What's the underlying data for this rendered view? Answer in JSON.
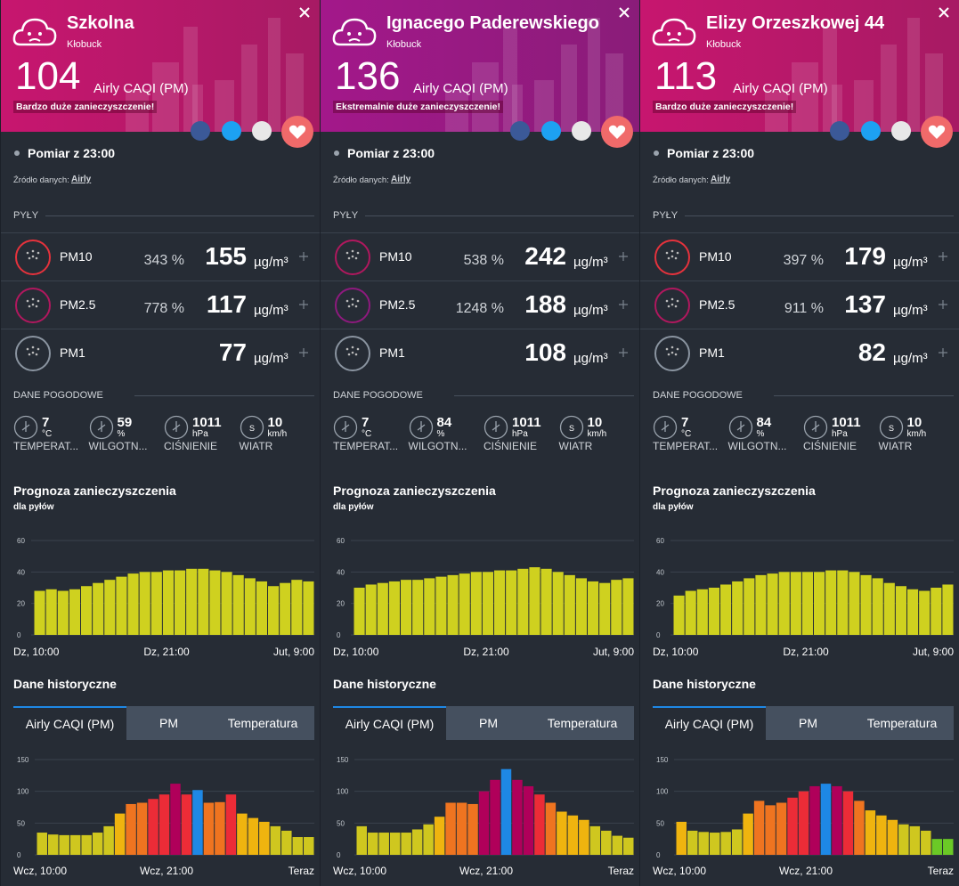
{
  "panels": [
    {
      "title": "Szkolna",
      "city": "Kłobuck",
      "header_color": "#c7166f",
      "caqi": 104,
      "caqi_label": "Airly CAQI (PM)",
      "status": "Bardzo duże zanieczyszczenie!",
      "measurement": "Pomiar z 23:00",
      "source_label": "Źródło danych:",
      "source": "Airly",
      "dust_header": "PYŁY",
      "pm": [
        {
          "name": "PM10",
          "percent": "343 %",
          "value": 155,
          "unit": "µg/m³",
          "ring_color": "#e5323c"
        },
        {
          "name": "PM2.5",
          "percent": "778 %",
          "value": 117,
          "unit": "µg/m³",
          "ring_color": "#b0185e"
        },
        {
          "name": "PM1",
          "value": 77,
          "unit": "µg/m³",
          "ring_color": "#8a94a0"
        }
      ],
      "weather_header": "DANE POGODOWE",
      "weather": [
        {
          "value": "7",
          "unit": "°C",
          "label": "TEMPERAT..."
        },
        {
          "value": "59",
          "unit": "%",
          "label": "WILGOTN..."
        },
        {
          "value": "1011",
          "unit": "hPa",
          "label": "CIŚNIENIE"
        },
        {
          "value": "10",
          "unit": "km/h",
          "label": "WIATR",
          "icon_text": "S"
        }
      ],
      "forecast": {
        "title": "Prognoza zanieczyszczenia",
        "subtitle": "dla pyłów",
        "color": "#cfd11f",
        "ylim": [
          0,
          60
        ],
        "yticks": [
          0,
          20,
          40,
          60
        ],
        "values": [
          28,
          29,
          28,
          29,
          31,
          33,
          35,
          37,
          39,
          40,
          40,
          41,
          41,
          42,
          42,
          41,
          40,
          38,
          36,
          34,
          31,
          33,
          35,
          34
        ],
        "xlabels": [
          "Dz, 10:00",
          "Dz, 21:00",
          "Jut, 9:00"
        ]
      },
      "history": {
        "title": "Dane historyczne",
        "tabs": [
          "Airly CAQI (PM)",
          "PM",
          "Temperatura"
        ],
        "ylim": [
          0,
          150
        ],
        "yticks": [
          0,
          50,
          100,
          150
        ],
        "values": [
          35,
          32,
          31,
          31,
          31,
          35,
          45,
          65,
          80,
          82,
          88,
          95,
          112,
          95,
          102,
          82,
          83,
          95,
          65,
          58,
          52,
          45,
          38,
          28,
          28
        ],
        "colors": [
          "#cfc71f",
          "#cfc71f",
          "#cfc71f",
          "#cfc71f",
          "#cfc71f",
          "#cfc71f",
          "#cfc71f",
          "#efb40f",
          "#ef7420",
          "#ef7420",
          "#ec2c37",
          "#ec2c37",
          "#b0005a",
          "#ec2c37",
          "#1e88e5",
          "#ef7420",
          "#ef7420",
          "#ec2c37",
          "#efb40f",
          "#efb40f",
          "#efb40f",
          "#cfc71f",
          "#cfc71f",
          "#cfc71f",
          "#cfc71f"
        ],
        "xlabels": [
          "Wcz, 10:00",
          "Wcz, 21:00",
          "Teraz"
        ]
      }
    },
    {
      "title": "Ignacego Paderewskiego",
      "city": "Kłobuck",
      "header_color": "#a3188a",
      "caqi": 136,
      "caqi_label": "Airly CAQI (PM)",
      "status": "Ekstremalnie duże zanieczyszczenie!",
      "measurement": "Pomiar z 23:00",
      "source_label": "Źródło danych:",
      "source": "Airly",
      "dust_header": "PYŁY",
      "pm": [
        {
          "name": "PM10",
          "percent": "538 %",
          "value": 242,
          "unit": "µg/m³",
          "ring_color": "#b0185e"
        },
        {
          "name": "PM2.5",
          "percent": "1248 %",
          "value": 188,
          "unit": "µg/m³",
          "ring_color": "#8e1a7e"
        },
        {
          "name": "PM1",
          "value": 108,
          "unit": "µg/m³",
          "ring_color": "#8a94a0"
        }
      ],
      "weather_header": "DANE POGODOWE",
      "weather": [
        {
          "value": "7",
          "unit": "°C",
          "label": "TEMPERAT..."
        },
        {
          "value": "84",
          "unit": "%",
          "label": "WILGOTN..."
        },
        {
          "value": "1011",
          "unit": "hPa",
          "label": "CIŚNIENIE"
        },
        {
          "value": "10",
          "unit": "km/h",
          "label": "WIATR",
          "icon_text": "S"
        }
      ],
      "forecast": {
        "title": "Prognoza zanieczyszczenia",
        "subtitle": "dla pyłów",
        "color": "#cfd11f",
        "ylim": [
          0,
          60
        ],
        "yticks": [
          0,
          20,
          40,
          60
        ],
        "values": [
          30,
          32,
          33,
          34,
          35,
          35,
          36,
          37,
          38,
          39,
          40,
          40,
          41,
          41,
          42,
          43,
          42,
          40,
          38,
          36,
          34,
          33,
          35,
          36
        ],
        "xlabels": [
          "Dz, 10:00",
          "Dz, 21:00",
          "Jut, 9:00"
        ]
      },
      "history": {
        "title": "Dane historyczne",
        "tabs": [
          "Airly CAQI (PM)",
          "PM",
          "Temperatura"
        ],
        "ylim": [
          0,
          150
        ],
        "yticks": [
          0,
          50,
          100,
          150
        ],
        "values": [
          45,
          35,
          35,
          35,
          35,
          40,
          48,
          60,
          82,
          82,
          80,
          100,
          118,
          135,
          118,
          108,
          95,
          82,
          68,
          62,
          55,
          45,
          38,
          30,
          27
        ],
        "colors": [
          "#cfc71f",
          "#cfc71f",
          "#cfc71f",
          "#cfc71f",
          "#cfc71f",
          "#cfc71f",
          "#cfc71f",
          "#efb40f",
          "#ef7420",
          "#ef7420",
          "#ef7420",
          "#b0005a",
          "#b0005a",
          "#1e88e5",
          "#b0005a",
          "#b0005a",
          "#ec2c37",
          "#ef7420",
          "#efb40f",
          "#efb40f",
          "#efb40f",
          "#cfc71f",
          "#cfc71f",
          "#cfc71f",
          "#cfc71f"
        ],
        "xlabels": [
          "Wcz, 10:00",
          "Wcz, 21:00",
          "Teraz"
        ]
      }
    },
    {
      "title": "Elizy Orzeszkowej 44",
      "city": "Kłobuck",
      "header_color": "#c7166f",
      "caqi": 113,
      "caqi_label": "Airly CAQI (PM)",
      "status": "Bardzo duże zanieczyszczenie!",
      "measurement": "Pomiar z 23:00",
      "source_label": "Źródło danych:",
      "source": "Airly",
      "dust_header": "PYŁY",
      "pm": [
        {
          "name": "PM10",
          "percent": "397 %",
          "value": 179,
          "unit": "µg/m³",
          "ring_color": "#e5323c"
        },
        {
          "name": "PM2.5",
          "percent": "911 %",
          "value": 137,
          "unit": "µg/m³",
          "ring_color": "#b0185e"
        },
        {
          "name": "PM1",
          "value": 82,
          "unit": "µg/m³",
          "ring_color": "#8a94a0"
        }
      ],
      "weather_header": "DANE POGODOWE",
      "weather": [
        {
          "value": "7",
          "unit": "°C",
          "label": "TEMPERAT..."
        },
        {
          "value": "84",
          "unit": "%",
          "label": "WILGOTN..."
        },
        {
          "value": "1011",
          "unit": "hPa",
          "label": "CIŚNIENIE"
        },
        {
          "value": "10",
          "unit": "km/h",
          "label": "WIATR",
          "icon_text": "S"
        }
      ],
      "forecast": {
        "title": "Prognoza zanieczyszczenia",
        "subtitle": "dla pyłów",
        "color": "#cfd11f",
        "ylim": [
          0,
          60
        ],
        "yticks": [
          0,
          20,
          40,
          60
        ],
        "values": [
          25,
          28,
          29,
          30,
          32,
          34,
          36,
          38,
          39,
          40,
          40,
          40,
          40,
          41,
          41,
          40,
          38,
          36,
          33,
          31,
          29,
          28,
          30,
          32
        ],
        "xlabels": [
          "Dz, 10:00",
          "Dz, 21:00",
          "Jut, 9:00"
        ]
      },
      "history": {
        "title": "Dane historyczne",
        "tabs": [
          "Airly CAQI (PM)",
          "PM",
          "Temperatura"
        ],
        "ylim": [
          0,
          150
        ],
        "yticks": [
          0,
          50,
          100,
          150
        ],
        "values": [
          52,
          38,
          36,
          35,
          36,
          40,
          65,
          85,
          78,
          82,
          90,
          100,
          108,
          112,
          108,
          100,
          85,
          70,
          62,
          55,
          48,
          45,
          38,
          25,
          25
        ],
        "colors": [
          "#efb40f",
          "#cfc71f",
          "#cfc71f",
          "#cfc71f",
          "#cfc71f",
          "#cfc71f",
          "#efb40f",
          "#ef7420",
          "#ef7420",
          "#ef7420",
          "#ec2c37",
          "#ec2c37",
          "#b0005a",
          "#1e88e5",
          "#b0005a",
          "#ec2c37",
          "#ef7420",
          "#efb40f",
          "#efb40f",
          "#efb40f",
          "#cfc71f",
          "#cfc71f",
          "#cfc71f",
          "#6bc926",
          "#6bc926"
        ],
        "xlabels": [
          "Wcz, 10:00",
          "Wcz, 21:00",
          "Teraz"
        ]
      }
    }
  ]
}
